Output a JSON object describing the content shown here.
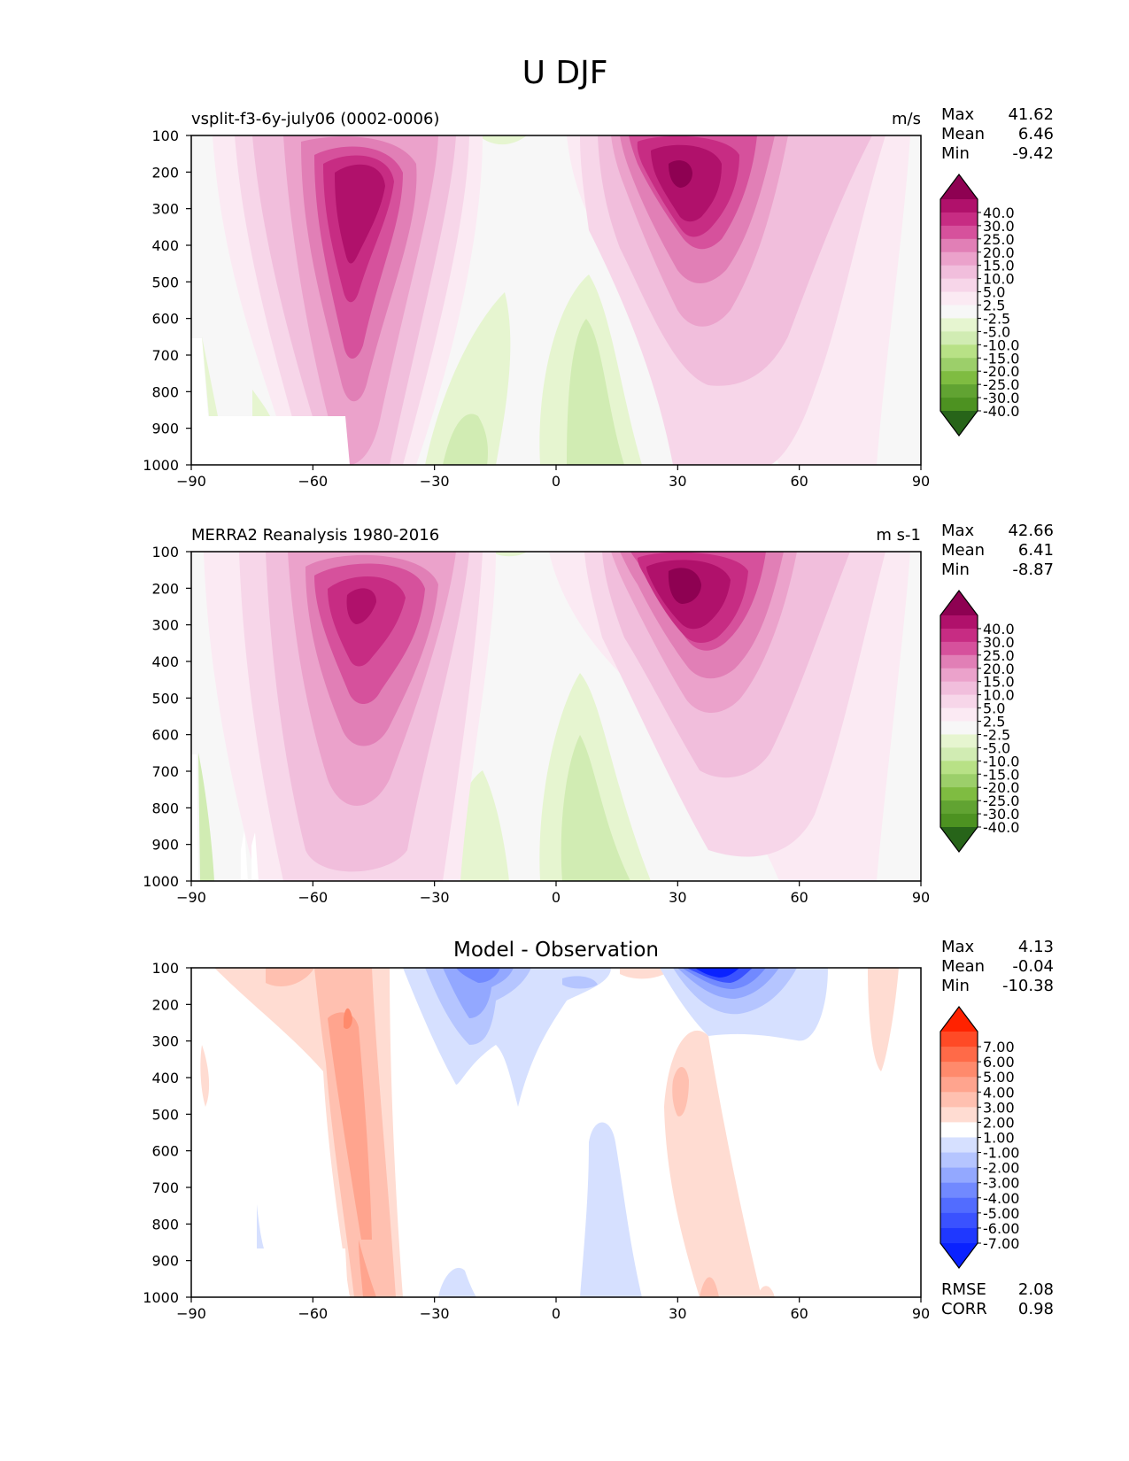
{
  "figure": {
    "title": "U DJF"
  },
  "chart_data": [
    {
      "type": "heatmap",
      "title": "vsplit-f3-6y-july06 (0002-0006)",
      "units": "m/s",
      "stats": [
        {
          "label": "Max",
          "value": "41.62"
        },
        {
          "label": "Mean",
          "value": "6.46"
        },
        {
          "label": "Min",
          "value": "-9.42"
        }
      ],
      "xlim": [
        -90,
        90
      ],
      "xticks": [
        "−90",
        "−60",
        "−30",
        "0",
        "30",
        "60",
        "90"
      ],
      "xtick_values": [
        -90,
        -60,
        -30,
        0,
        30,
        60,
        90
      ],
      "ylim": [
        1000,
        100
      ],
      "yticks": [
        "100",
        "200",
        "300",
        "400",
        "500",
        "600",
        "700",
        "800",
        "900",
        "1000"
      ],
      "ytick_values": [
        100,
        200,
        300,
        400,
        500,
        600,
        700,
        800,
        900,
        1000
      ],
      "jets": [
        {
          "lat": -48,
          "p": 260,
          "speed": 34
        },
        {
          "lat": 31,
          "p": 210,
          "speed": 41
        }
      ],
      "colorbar": {
        "labels": [
          "40.0",
          "30.0",
          "25.0",
          "20.0",
          "15.0",
          "10.0",
          "5.0",
          "2.5",
          "-2.5",
          "-5.0",
          "-10.0",
          "-15.0",
          "-20.0",
          "-25.0",
          "-30.0",
          "-40.0"
        ],
        "colors": [
          "#8e0152",
          "#b0116b",
          "#c72c83",
          "#d6519c",
          "#e17fb6",
          "#eba2cb",
          "#f1bedc",
          "#f7d6e9",
          "#fbeaf3",
          "#f7f7f7",
          "#e6f5d0",
          "#d1ecb3",
          "#b8e186",
          "#9ccf6a",
          "#7fbc41",
          "#61a332",
          "#4d9221",
          "#276419"
        ]
      }
    },
    {
      "type": "heatmap",
      "title": "MERRA2 Reanalysis 1980-2016",
      "units": "m s-1",
      "stats": [
        {
          "label": "Max",
          "value": "42.66"
        },
        {
          "label": "Mean",
          "value": "6.41"
        },
        {
          "label": "Min",
          "value": "-8.87"
        }
      ],
      "xlim": [
        -90,
        90
      ],
      "xticks": [
        "−90",
        "−60",
        "−30",
        "0",
        "30",
        "60",
        "90"
      ],
      "xtick_values": [
        -90,
        -60,
        -30,
        0,
        30,
        60,
        90
      ],
      "ylim": [
        1000,
        100
      ],
      "yticks": [
        "100",
        "200",
        "300",
        "400",
        "500",
        "600",
        "700",
        "800",
        "900",
        "1000"
      ],
      "ytick_values": [
        100,
        200,
        300,
        400,
        500,
        600,
        700,
        800,
        900,
        1000
      ],
      "jets": [
        {
          "lat": -47,
          "p": 230,
          "speed": 32
        },
        {
          "lat": 31,
          "p": 200,
          "speed": 42
        }
      ],
      "colorbar": {
        "labels": [
          "40.0",
          "30.0",
          "25.0",
          "20.0",
          "15.0",
          "10.0",
          "5.0",
          "2.5",
          "-2.5",
          "-5.0",
          "-10.0",
          "-15.0",
          "-20.0",
          "-25.0",
          "-30.0",
          "-40.0"
        ],
        "colors": [
          "#8e0152",
          "#b0116b",
          "#c72c83",
          "#d6519c",
          "#e17fb6",
          "#eba2cb",
          "#f1bedc",
          "#f7d6e9",
          "#fbeaf3",
          "#f7f7f7",
          "#e6f5d0",
          "#d1ecb3",
          "#b8e186",
          "#9ccf6a",
          "#7fbc41",
          "#61a332",
          "#4d9221",
          "#276419"
        ]
      }
    },
    {
      "type": "heatmap",
      "title": "Model - Observation",
      "units": "",
      "stats": [
        {
          "label": "Max",
          "value": "4.13"
        },
        {
          "label": "Mean",
          "value": "-0.04"
        },
        {
          "label": "Min",
          "value": "-10.38"
        }
      ],
      "extra_stats": [
        {
          "label": "RMSE",
          "value": "2.08"
        },
        {
          "label": "CORR",
          "value": "0.98"
        }
      ],
      "xlim": [
        -90,
        90
      ],
      "xticks": [
        "−90",
        "−60",
        "−30",
        "0",
        "30",
        "60",
        "90"
      ],
      "xtick_values": [
        -90,
        -60,
        -30,
        0,
        30,
        60,
        90
      ],
      "ylim": [
        1000,
        100
      ],
      "yticks": [
        "100",
        "200",
        "300",
        "400",
        "500",
        "600",
        "700",
        "800",
        "900",
        "1000"
      ],
      "ytick_values": [
        100,
        200,
        300,
        400,
        500,
        600,
        700,
        800,
        900,
        1000
      ],
      "colorbar": {
        "labels": [
          "7.00",
          "6.00",
          "5.00",
          "4.00",
          "3.00",
          "2.00",
          "1.00",
          "-1.00",
          "-2.00",
          "-3.00",
          "-4.00",
          "-5.00",
          "-6.00",
          "-7.00"
        ],
        "colors": [
          "#ff2200",
          "#ff4a26",
          "#ff6a48",
          "#ff8a6c",
          "#ffa48e",
          "#ffc0b0",
          "#ffdcd2",
          "#ffffff",
          "#d6e0ff",
          "#b5c5ff",
          "#93a8ff",
          "#7189ff",
          "#526cff",
          "#3a52ff",
          "#1f38ff",
          "#0a22ff"
        ]
      }
    }
  ]
}
